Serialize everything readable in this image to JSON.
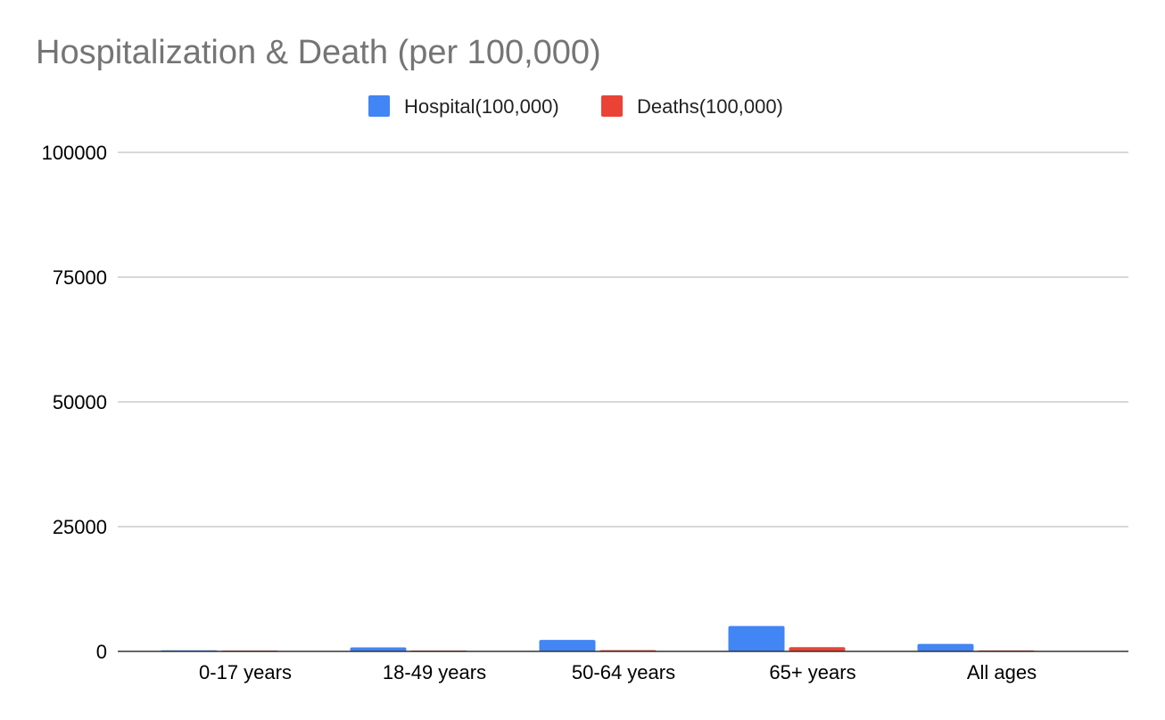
{
  "chart_data": {
    "type": "bar",
    "title": "Hospitalization & Death (per 100,000)",
    "xlabel": "",
    "ylabel": "",
    "categories": [
      "0-17 years",
      "18-49 years",
      "50-64 years",
      "65+ years",
      "All ages"
    ],
    "series": [
      {
        "name": "Hospital(100,000)",
        "color": "#4285f4",
        "values": [
          220,
          800,
          2300,
          5100,
          1500
        ]
      },
      {
        "name": "Deaths(100,000)",
        "color": "#ea4335",
        "values": [
          5,
          60,
          250,
          850,
          200
        ]
      }
    ],
    "ylim": [
      0,
      100000
    ],
    "yticks": [
      "0",
      "25000",
      "50000",
      "75000",
      "100000"
    ],
    "grid": true,
    "legend": "top"
  }
}
